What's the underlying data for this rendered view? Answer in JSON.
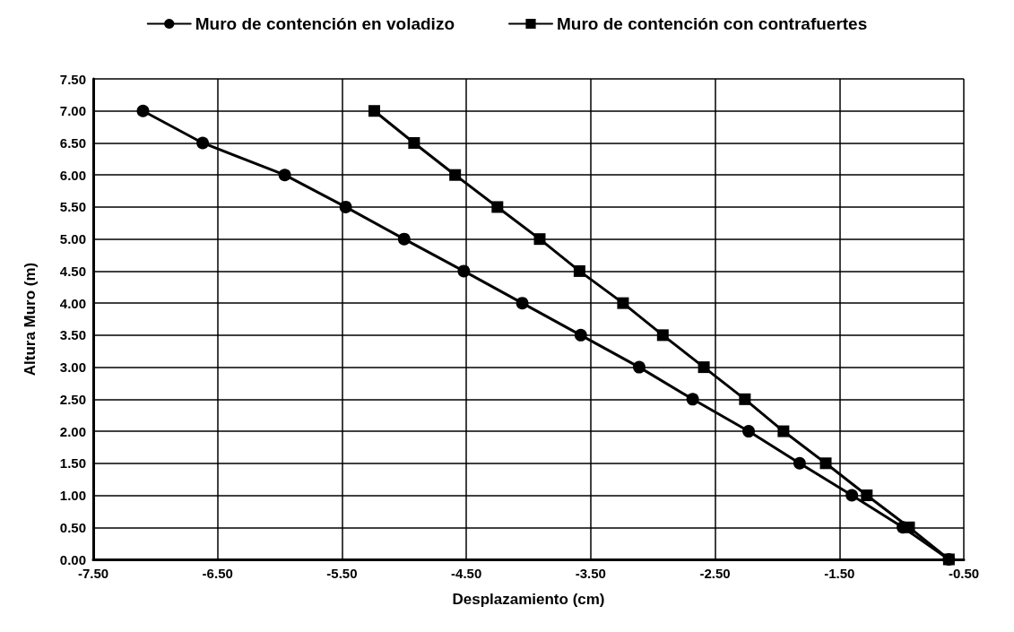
{
  "chart_data": {
    "type": "line",
    "xlabel": "Desplazamiento (cm)",
    "ylabel": "Altura Muro (m)",
    "xlim": [
      -7.5,
      -0.5
    ],
    "xticks": [
      {
        "value": -7.5,
        "label": "-7.50"
      },
      {
        "value": -6.5,
        "label": "-6.50"
      },
      {
        "value": -5.5,
        "label": "-5.50"
      },
      {
        "value": -4.5,
        "label": "-4.50"
      },
      {
        "value": -3.5,
        "label": "-3.50"
      },
      {
        "value": -2.5,
        "label": "-2.50"
      },
      {
        "value": -1.5,
        "label": "-1.50"
      },
      {
        "value": -0.5,
        "label": "-0.50"
      }
    ],
    "ylim": [
      0,
      7.5
    ],
    "yticks": [
      {
        "value": 0,
        "label": "0.00"
      },
      {
        "value": 0.5,
        "label": "0.50"
      },
      {
        "value": 1,
        "label": "1.00"
      },
      {
        "value": 1.5,
        "label": "1.50"
      },
      {
        "value": 2,
        "label": "2.00"
      },
      {
        "value": 2.5,
        "label": "2.50"
      },
      {
        "value": 3,
        "label": "3.00"
      },
      {
        "value": 3.5,
        "label": "3.50"
      },
      {
        "value": 4,
        "label": "4.00"
      },
      {
        "value": 4.5,
        "label": "4.50"
      },
      {
        "value": 5,
        "label": "5.00"
      },
      {
        "value": 5.5,
        "label": "5.50"
      },
      {
        "value": 6,
        "label": "6.00"
      },
      {
        "value": 6.5,
        "label": "6.50"
      },
      {
        "value": 7,
        "label": "7.00"
      },
      {
        "value": 7.5,
        "label": "7.50"
      }
    ],
    "grid": true,
    "legend": "top",
    "line_style": "solid",
    "series": [
      {
        "name": "Muro de contención en voladizo",
        "color": "#000000",
        "marker": "circle",
        "x": [
          -7.1,
          -6.62,
          -5.96,
          -5.47,
          -5.0,
          -4.52,
          -4.05,
          -3.58,
          -3.11,
          -2.68,
          -2.23,
          -1.82,
          -1.4,
          -0.99,
          -0.62
        ],
        "values": [
          7,
          6.5,
          6,
          5.5,
          5,
          4.5,
          4,
          3.5,
          3,
          2.5,
          2,
          1.5,
          1,
          0.5,
          0
        ]
      },
      {
        "name": "Muro de contención con contrafuertes",
        "color": "#000000",
        "marker": "square",
        "x": [
          -5.24,
          -4.92,
          -4.59,
          -4.25,
          -3.91,
          -3.59,
          -3.24,
          -2.92,
          -2.59,
          -2.26,
          -1.95,
          -1.61,
          -1.28,
          -0.94,
          -0.62
        ],
        "values": [
          7,
          6.5,
          6,
          5.5,
          5,
          4.5,
          4,
          3.5,
          3,
          2.5,
          2,
          1.5,
          1,
          0.5,
          0
        ]
      }
    ]
  }
}
